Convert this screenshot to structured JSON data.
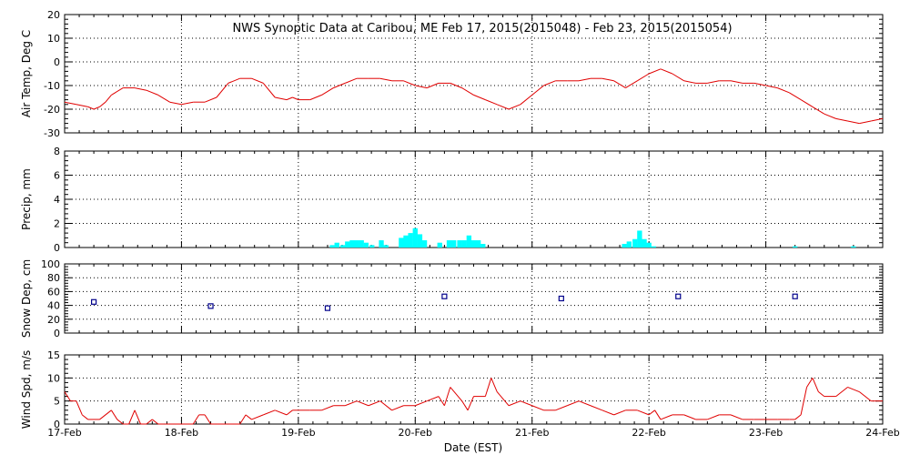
{
  "chart_data": {
    "title": "NWS Synoptic Data at Caribou, ME   Feb 17, 2015(2015048) - Feb 23, 2015(2015054)",
    "xlabel": "Date (EST)",
    "x_tick_labels": [
      "17-Feb",
      "18-Feb",
      "19-Feb",
      "20-Feb",
      "21-Feb",
      "22-Feb",
      "23-Feb",
      "24-Feb"
    ],
    "x_range_days": [
      0,
      7
    ],
    "grid": true,
    "colors": {
      "line": "#e00000",
      "precip": "#00ffff",
      "snow_marker": "#00008b",
      "grid": "#000000"
    },
    "panels": [
      {
        "id": "air-temp",
        "type": "line",
        "ylabel": "Air Temp, Deg C",
        "ylim": [
          -30,
          20
        ],
        "yticks": [
          -30,
          -20,
          -10,
          0,
          10,
          20
        ],
        "x": [
          0,
          0.1,
          0.2,
          0.25,
          0.3,
          0.35,
          0.4,
          0.5,
          0.6,
          0.7,
          0.8,
          0.9,
          1.0,
          1.1,
          1.2,
          1.3,
          1.4,
          1.5,
          1.6,
          1.7,
          1.8,
          1.9,
          1.95,
          2.0,
          2.1,
          2.2,
          2.3,
          2.4,
          2.5,
          2.6,
          2.7,
          2.8,
          2.9,
          3.0,
          3.1,
          3.2,
          3.3,
          3.4,
          3.5,
          3.6,
          3.7,
          3.8,
          3.9,
          4.0,
          4.1,
          4.2,
          4.3,
          4.4,
          4.5,
          4.6,
          4.7,
          4.8,
          4.9,
          5.0,
          5.1,
          5.2,
          5.3,
          5.4,
          5.5,
          5.6,
          5.7,
          5.8,
          5.9,
          6.0,
          6.1,
          6.2,
          6.3,
          6.4,
          6.5,
          6.6,
          6.7,
          6.8,
          6.9,
          7.0
        ],
        "values": [
          -17,
          -18,
          -19,
          -20,
          -19,
          -17,
          -14,
          -11,
          -11,
          -12,
          -14,
          -17,
          -18,
          -17,
          -17,
          -15,
          -9,
          -7,
          -7,
          -9,
          -15,
          -16,
          -15,
          -16,
          -16,
          -14,
          -11,
          -9,
          -7,
          -7,
          -7,
          -8,
          -8,
          -10,
          -11,
          -9,
          -9,
          -11,
          -14,
          -16,
          -18,
          -20,
          -18,
          -14,
          -10,
          -8,
          -8,
          -8,
          -7,
          -7,
          -8,
          -11,
          -8,
          -5,
          -3,
          -5,
          -8,
          -9,
          -9,
          -8,
          -8,
          -9,
          -9,
          -10,
          -11,
          -13,
          -16,
          -19,
          -22,
          -24,
          -25,
          -26,
          -25,
          -24
        ]
      },
      {
        "id": "precip",
        "type": "bar",
        "ylabel": "Precip, mm",
        "ylim": [
          0,
          8
        ],
        "yticks": [
          0,
          2,
          4,
          6,
          8
        ],
        "bin_hours": 1,
        "bins": [
          {
            "x": 2.29,
            "v": 0.2
          },
          {
            "x": 2.33,
            "v": 0.4
          },
          {
            "x": 2.38,
            "v": 0.2
          },
          {
            "x": 2.42,
            "v": 0.5
          },
          {
            "x": 2.46,
            "v": 0.6
          },
          {
            "x": 2.5,
            "v": 0.6
          },
          {
            "x": 2.54,
            "v": 0.6
          },
          {
            "x": 2.58,
            "v": 0.4
          },
          {
            "x": 2.63,
            "v": 0.2
          },
          {
            "x": 2.71,
            "v": 0.6
          },
          {
            "x": 2.75,
            "v": 0.2
          },
          {
            "x": 2.88,
            "v": 0.8
          },
          {
            "x": 2.92,
            "v": 1.0
          },
          {
            "x": 2.96,
            "v": 1.2
          },
          {
            "x": 3.0,
            "v": 1.6
          },
          {
            "x": 3.04,
            "v": 1.1
          },
          {
            "x": 3.08,
            "v": 0.6
          },
          {
            "x": 3.21,
            "v": 0.4
          },
          {
            "x": 3.29,
            "v": 0.6
          },
          {
            "x": 3.33,
            "v": 0.6
          },
          {
            "x": 3.38,
            "v": 0.6
          },
          {
            "x": 3.42,
            "v": 0.6
          },
          {
            "x": 3.46,
            "v": 1.0
          },
          {
            "x": 3.5,
            "v": 0.6
          },
          {
            "x": 3.54,
            "v": 0.6
          },
          {
            "x": 3.58,
            "v": 0.3
          },
          {
            "x": 4.79,
            "v": 0.3
          },
          {
            "x": 4.83,
            "v": 0.5
          },
          {
            "x": 4.88,
            "v": 0.7
          },
          {
            "x": 4.92,
            "v": 1.4
          },
          {
            "x": 4.96,
            "v": 0.7
          },
          {
            "x": 5.0,
            "v": 0.4
          },
          {
            "x": 5.04,
            "v": 0.1
          },
          {
            "x": 6.25,
            "v": 0.1
          },
          {
            "x": 6.75,
            "v": 0.1
          }
        ]
      },
      {
        "id": "snow-depth",
        "type": "scatter",
        "ylabel": "Snow Dep, cm",
        "ylim": [
          0,
          100
        ],
        "yticks": [
          0,
          20,
          40,
          60,
          80,
          100
        ],
        "x": [
          0.25,
          1.25,
          2.25,
          3.25,
          4.25,
          5.25,
          6.25
        ],
        "values": [
          45,
          39,
          36,
          53,
          50,
          53,
          53
        ]
      },
      {
        "id": "wind-speed",
        "type": "line",
        "ylabel": "Wind Spd, m/s",
        "ylim": [
          0,
          15
        ],
        "yticks": [
          0,
          5,
          10,
          15
        ],
        "x": [
          0,
          0.05,
          0.1,
          0.15,
          0.2,
          0.3,
          0.4,
          0.45,
          0.5,
          0.55,
          0.6,
          0.65,
          0.7,
          0.75,
          0.8,
          0.85,
          0.9,
          0.95,
          1.0,
          1.1,
          1.15,
          1.2,
          1.25,
          1.3,
          1.4,
          1.5,
          1.55,
          1.6,
          1.7,
          1.8,
          1.9,
          1.95,
          2.0,
          2.1,
          2.2,
          2.3,
          2.4,
          2.5,
          2.6,
          2.7,
          2.8,
          2.9,
          3.0,
          3.1,
          3.2,
          3.25,
          3.3,
          3.4,
          3.45,
          3.5,
          3.6,
          3.65,
          3.7,
          3.8,
          3.9,
          4.0,
          4.1,
          4.2,
          4.3,
          4.4,
          4.5,
          4.6,
          4.7,
          4.8,
          4.9,
          5.0,
          5.05,
          5.1,
          5.2,
          5.3,
          5.4,
          5.5,
          5.6,
          5.7,
          5.8,
          5.9,
          6.0,
          6.1,
          6.2,
          6.25,
          6.3,
          6.35,
          6.4,
          6.45,
          6.5,
          6.6,
          6.7,
          6.8,
          6.9,
          7.0
        ],
        "values": [
          7,
          5,
          5,
          2,
          1,
          1,
          3,
          1,
          0,
          0,
          3,
          0,
          0,
          1,
          0,
          0,
          0,
          0,
          0,
          0,
          2,
          2,
          0,
          0,
          0,
          0,
          2,
          1,
          2,
          3,
          2,
          3,
          3,
          3,
          3,
          4,
          4,
          5,
          4,
          5,
          3,
          4,
          4,
          5,
          6,
          4,
          8,
          5,
          3,
          6,
          6,
          10,
          7,
          4,
          5,
          4,
          3,
          3,
          4,
          5,
          4,
          3,
          2,
          3,
          3,
          2,
          3,
          1,
          2,
          2,
          1,
          1,
          2,
          2,
          1,
          1,
          1,
          1,
          1,
          1,
          2,
          8,
          10,
          7,
          6,
          6,
          8,
          7,
          5,
          5
        ]
      }
    ]
  }
}
